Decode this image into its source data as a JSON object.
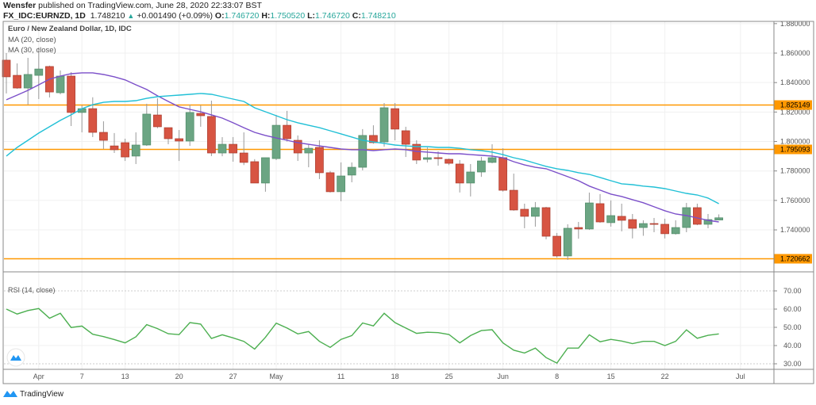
{
  "header": {
    "author": "Wensfer",
    "published": "published on TradingView.com, June 28, 2020 22:33:07 BST",
    "symbol": "FX_IDC:EURNZD, 1D",
    "last": "1.748210",
    "change": "+0.001490 (+0.09%)",
    "o_label": "O:",
    "o": "1.746720",
    "h_label": "H:",
    "h": "1.750520",
    "l_label": "L:",
    "l": "1.746720",
    "c_label": "C:",
    "c": "1.748210"
  },
  "legend": {
    "title": "Euro / New Zealand Dollar, 1D, IDC",
    "ma20": "MA (20, close)",
    "ma30": "MA (30, close)",
    "rsi": "RSI (14, close)"
  },
  "footer": {
    "brand": "TradingView"
  },
  "colors": {
    "up": "#6ba583",
    "down": "#d75442",
    "ma20": "#7b4fc9",
    "ma30": "#21c0d6",
    "rsi": "#4caf50",
    "level": "#ff9800"
  },
  "chart_data": [
    {
      "type": "candlestick",
      "title": "Euro / New Zealand Dollar, 1D, IDC",
      "ylim": [
        1.71,
        1.88
      ],
      "y_ticks": [
        "1.880000",
        "1.860000",
        "1.840000",
        "1.820000",
        "1.800000",
        "1.780000",
        "1.760000",
        "1.740000"
      ],
      "x_ticks": [
        {
          "label": "Apr",
          "date": "2020-04-01"
        },
        {
          "label": "7",
          "date": "2020-04-07"
        },
        {
          "label": "13",
          "date": "2020-04-13"
        },
        {
          "label": "20",
          "date": "2020-04-20"
        },
        {
          "label": "27",
          "date": "2020-04-27"
        },
        {
          "label": "May",
          "date": "2020-05-01"
        },
        {
          "label": "11",
          "date": "2020-05-11"
        },
        {
          "label": "18",
          "date": "2020-05-18"
        },
        {
          "label": "25",
          "date": "2020-05-25"
        },
        {
          "label": "Jun",
          "date": "2020-06-01"
        },
        {
          "label": "8",
          "date": "2020-06-08"
        },
        {
          "label": "15",
          "date": "2020-06-15"
        },
        {
          "label": "22",
          "date": "2020-06-22"
        },
        {
          "label": "Jul",
          "date": "2020-07-01"
        }
      ],
      "levels": [
        "1.825149",
        "1.795093",
        "1.720662"
      ],
      "candle_fields": [
        "date",
        "open",
        "high",
        "low",
        "close"
      ],
      "candles": [
        [
          "2020-03-27",
          1.8552,
          1.86,
          1.8326,
          1.8439
        ],
        [
          "2020-03-30",
          1.8449,
          1.853,
          1.8358,
          1.8363
        ],
        [
          "2020-03-31",
          1.8363,
          1.8568,
          1.825,
          1.8455
        ],
        [
          "2020-04-01",
          1.8449,
          1.8638,
          1.8288,
          1.8492
        ],
        [
          "2020-04-02",
          1.8509,
          1.8515,
          1.8299,
          1.8336
        ],
        [
          "2020-04-03",
          1.8331,
          1.8482,
          1.832,
          1.8444
        ],
        [
          "2020-04-06",
          1.8444,
          1.8471,
          1.8105,
          1.8197
        ],
        [
          "2020-04-07",
          1.8197,
          1.8245,
          1.8062,
          1.8223
        ],
        [
          "2020-04-08",
          1.8223,
          1.83,
          1.803,
          1.8062
        ],
        [
          "2020-04-09",
          1.8062,
          1.8137,
          1.7949,
          1.8008
        ],
        [
          "2020-04-10",
          1.797,
          1.8057,
          1.7922,
          1.7944
        ],
        [
          "2020-04-13",
          1.7992,
          1.8019,
          1.7868,
          1.7895
        ],
        [
          "2020-04-14",
          1.7901,
          1.8062,
          1.7847,
          1.7976
        ],
        [
          "2020-04-15",
          1.7976,
          1.8256,
          1.797,
          1.8186
        ],
        [
          "2020-04-16",
          1.818,
          1.8293,
          1.809,
          1.81
        ],
        [
          "2020-04-17",
          1.8094,
          1.8094,
          1.7981,
          1.8019
        ],
        [
          "2020-04-20",
          1.8019,
          1.8078,
          1.7868,
          1.8003
        ],
        [
          "2020-04-21",
          1.8003,
          1.825,
          1.797,
          1.8197
        ],
        [
          "2020-04-22",
          1.8191,
          1.8245,
          1.81,
          1.8175
        ],
        [
          "2020-04-23",
          1.817,
          1.8277,
          1.7901,
          1.7922
        ],
        [
          "2020-04-24",
          1.7922,
          1.803,
          1.79,
          1.7981
        ],
        [
          "2020-04-27",
          1.7981,
          1.803,
          1.7863,
          1.7922
        ],
        [
          "2020-04-28",
          1.7922,
          1.8062,
          1.784,
          1.7858
        ],
        [
          "2020-04-29",
          1.7863,
          1.788,
          1.7718,
          1.7718
        ],
        [
          "2020-04-30",
          1.7718,
          1.789,
          1.7659,
          1.789
        ],
        [
          "2020-05-01",
          1.7884,
          1.818,
          1.7874,
          1.811
        ],
        [
          "2020-05-04",
          1.811,
          1.8208,
          1.8,
          1.8019
        ],
        [
          "2020-05-05",
          1.8008,
          1.8041,
          1.7868,
          1.7922
        ],
        [
          "2020-05-06",
          1.7922,
          1.7981,
          1.7825,
          1.7954
        ],
        [
          "2020-05-07",
          1.796,
          1.8008,
          1.7745,
          1.7788
        ],
        [
          "2020-05-08",
          1.7788,
          1.78,
          1.7654,
          1.7659
        ],
        [
          "2020-05-11",
          1.7659,
          1.7858,
          1.7595,
          1.7766
        ],
        [
          "2020-05-12",
          1.7772,
          1.7858,
          1.7723,
          1.7825
        ],
        [
          "2020-05-13",
          1.7825,
          1.8084,
          1.7804,
          1.8041
        ],
        [
          "2020-05-14",
          1.8041,
          1.811,
          1.7985,
          1.7992
        ],
        [
          "2020-05-15",
          1.7997,
          1.8261,
          1.7965,
          1.8229
        ],
        [
          "2020-05-18",
          1.8223,
          1.8261,
          1.8008,
          1.8084
        ],
        [
          "2020-05-19",
          1.8073,
          1.81,
          1.7895,
          1.7981
        ],
        [
          "2020-05-20",
          1.7981,
          1.8008,
          1.7847,
          1.7874
        ],
        [
          "2020-05-21",
          1.7879,
          1.796,
          1.7858,
          1.789
        ],
        [
          "2020-05-22",
          1.789,
          1.7933,
          1.7836,
          1.7884
        ],
        [
          "2020-05-25",
          1.7879,
          1.7884,
          1.784,
          1.7852
        ],
        [
          "2020-05-26",
          1.7847,
          1.7874,
          1.7654,
          1.7718
        ],
        [
          "2020-05-27",
          1.7718,
          1.7847,
          1.7627,
          1.7793
        ],
        [
          "2020-05-28",
          1.7793,
          1.7895,
          1.776,
          1.7868
        ],
        [
          "2020-05-29",
          1.7858,
          1.7981,
          1.7852,
          1.789
        ],
        [
          "2020-06-01",
          1.789,
          1.7954,
          1.766,
          1.7669
        ],
        [
          "2020-06-02",
          1.7669,
          1.7782,
          1.753,
          1.7535
        ],
        [
          "2020-06-03",
          1.754,
          1.7578,
          1.7411,
          1.7492
        ],
        [
          "2020-06-04",
          1.7492,
          1.7589,
          1.7422,
          1.7551
        ],
        [
          "2020-06-05",
          1.7551,
          1.7556,
          1.7336,
          1.7357
        ],
        [
          "2020-06-08",
          1.7357,
          1.7379,
          1.7212,
          1.7223
        ],
        [
          "2020-06-09",
          1.7223,
          1.7438,
          1.7196,
          1.7411
        ],
        [
          "2020-06-10",
          1.7416,
          1.7454,
          1.734,
          1.7406
        ],
        [
          "2020-06-11",
          1.7406,
          1.7653,
          1.74,
          1.7583
        ],
        [
          "2020-06-12",
          1.7578,
          1.7643,
          1.7449,
          1.7454
        ],
        [
          "2020-06-15",
          1.7449,
          1.76,
          1.7422,
          1.7497
        ],
        [
          "2020-06-16",
          1.7492,
          1.7578,
          1.739,
          1.7465
        ],
        [
          "2020-06-17",
          1.747,
          1.7508,
          1.7342,
          1.7411
        ],
        [
          "2020-06-18",
          1.7416,
          1.7465,
          1.736,
          1.7443
        ],
        [
          "2020-06-19",
          1.7443,
          1.7481,
          1.7384,
          1.7438
        ],
        [
          "2020-06-22",
          1.7438,
          1.7476,
          1.7342,
          1.7374
        ],
        [
          "2020-06-23",
          1.7374,
          1.7465,
          1.7368,
          1.7416
        ],
        [
          "2020-06-24",
          1.7416,
          1.7583,
          1.7384,
          1.7551
        ],
        [
          "2020-06-25",
          1.7551,
          1.7578,
          1.7432,
          1.7438
        ],
        [
          "2020-06-26",
          1.7438,
          1.7508,
          1.7411,
          1.747
        ],
        [
          "2020-06-29",
          1.74672,
          1.75052,
          1.74672,
          1.74821
        ]
      ],
      "series": [
        {
          "name": "MA (20, close)",
          "values": [
            1.8283,
            1.8315,
            1.8347,
            1.8385,
            1.8423,
            1.8444,
            1.846,
            1.8466,
            1.8466,
            1.8455,
            1.8439,
            1.8418,
            1.8385,
            1.8353,
            1.831,
            1.8272,
            1.8235,
            1.8218,
            1.8202,
            1.8181,
            1.8159,
            1.8127,
            1.8094,
            1.8062,
            1.8041,
            1.8024,
            1.8008,
            1.7992,
            1.7981,
            1.797,
            1.796,
            1.7949,
            1.7944,
            1.7944,
            1.7938,
            1.7944,
            1.7949,
            1.7944,
            1.7933,
            1.7928,
            1.7922,
            1.7917,
            1.7917,
            1.7911,
            1.7906,
            1.7901,
            1.789,
            1.7863,
            1.7841,
            1.7825,
            1.7815,
            1.7788,
            1.7761,
            1.7734,
            1.7697,
            1.767,
            1.7643,
            1.7627,
            1.7605,
            1.7584,
            1.7557,
            1.753,
            1.7508,
            1.7497,
            1.7481,
            1.7465,
            1.7454
          ]
        },
        {
          "name": "MA (30, close)",
          "values": [
            1.7901,
            1.796,
            1.8008,
            1.8057,
            1.81,
            1.8143,
            1.8181,
            1.8223,
            1.825,
            1.8266,
            1.8272,
            1.8272,
            1.8277,
            1.8293,
            1.8304,
            1.831,
            1.8315,
            1.832,
            1.8326,
            1.832,
            1.8304,
            1.8288,
            1.8272,
            1.8229,
            1.8202,
            1.8175,
            1.8148,
            1.8127,
            1.811,
            1.8094,
            1.8073,
            1.8052,
            1.803,
            1.8008,
            1.7997,
            1.7987,
            1.7976,
            1.797,
            1.7965,
            1.7965,
            1.796,
            1.796,
            1.7954,
            1.7944,
            1.7938,
            1.7928,
            1.7911,
            1.789,
            1.7874,
            1.7852,
            1.7831,
            1.7815,
            1.7804,
            1.7788,
            1.7777,
            1.7756,
            1.7734,
            1.7713,
            1.7707,
            1.7697,
            1.7691,
            1.768,
            1.7664,
            1.7648,
            1.7637,
            1.7616,
            1.7578
          ]
        }
      ]
    },
    {
      "type": "line",
      "title": "RSI (14, close)",
      "ylim": [
        25,
        75
      ],
      "y_ticks": [
        "70.00",
        "60.00",
        "50.00",
        "40.00",
        "30.00"
      ],
      "series": [
        {
          "name": "RSI (14, close)",
          "values": [
            60,
            57.3,
            59.2,
            60.3,
            55,
            57.7,
            49.9,
            50.7,
            46.2,
            44.9,
            43.3,
            41.5,
            44.8,
            51.5,
            49.3,
            46.5,
            46,
            52.6,
            51.8,
            43.9,
            45.9,
            44.2,
            42.3,
            38.1,
            44.5,
            52.3,
            49.6,
            46.4,
            47.7,
            42.3,
            39,
            43.4,
            45.5,
            52.4,
            50.8,
            57.7,
            52.6,
            49.6,
            46.7,
            47.3,
            47.1,
            46.1,
            41.5,
            45.5,
            48.2,
            48.7,
            41.5,
            37.5,
            35.9,
            38.6,
            33.4,
            30.4,
            38.6,
            38.6,
            45.9,
            42.1,
            43.4,
            42.5,
            41.1,
            42.3,
            42.3,
            40,
            42.3,
            48.6,
            44,
            45.6,
            46.4
          ]
        }
      ]
    }
  ]
}
